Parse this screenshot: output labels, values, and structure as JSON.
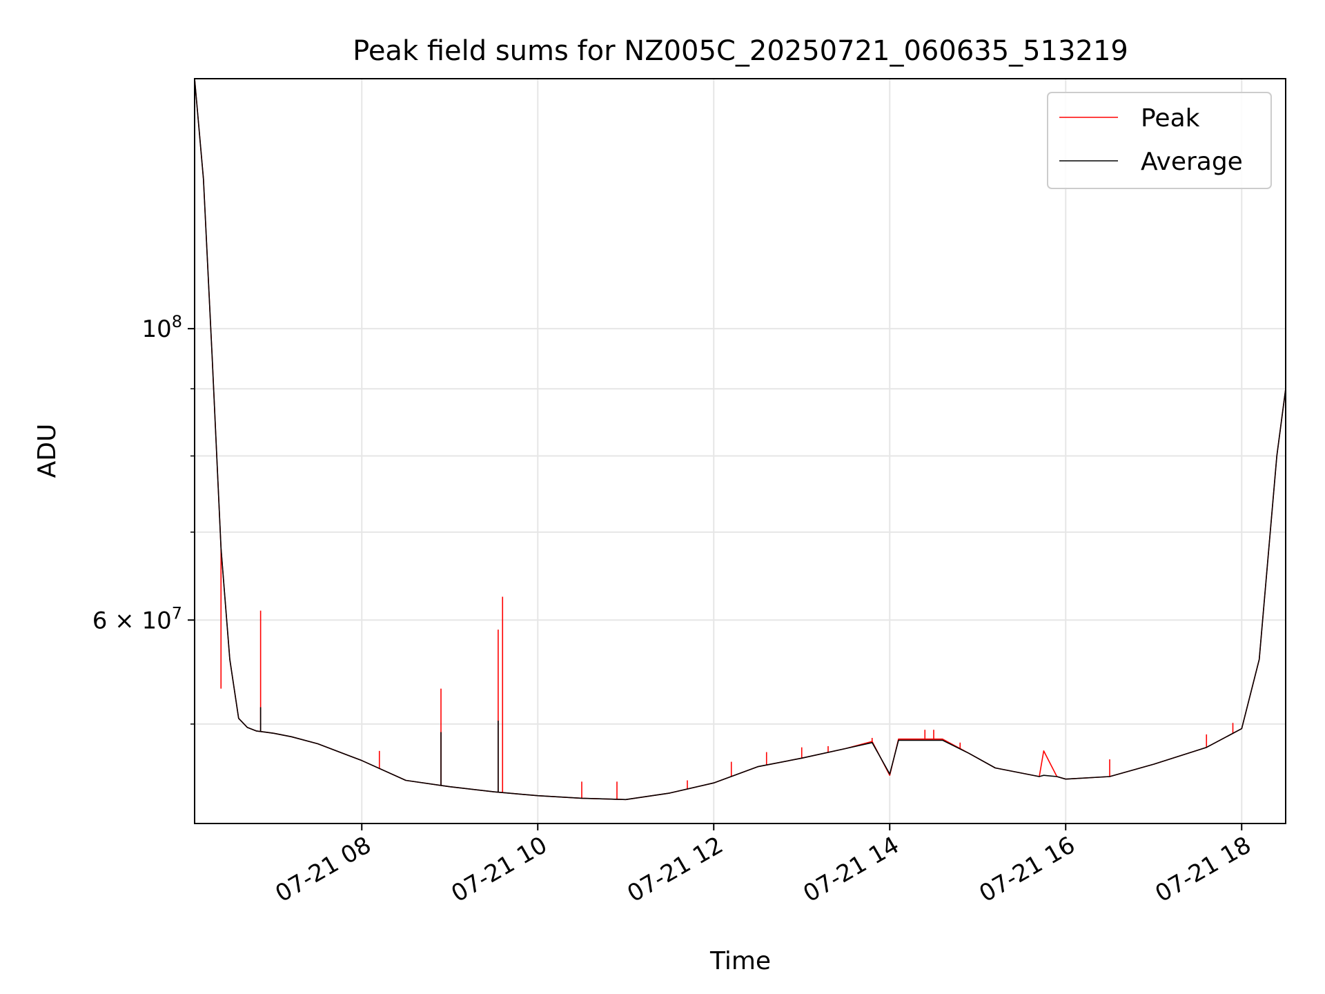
{
  "chart_data": {
    "type": "line",
    "title": "Peak field sums for NZ005C_20250721_060635_513219",
    "xlabel": "Time",
    "ylabel": "ADU",
    "x_unit": "time of day (hours), 2025-07-21",
    "ylim": [
      42000000,
      155000000
    ],
    "xlim": [
      6.1,
      18.5
    ],
    "yscale": "log",
    "grid": true,
    "legend_position": "upper right",
    "xticks": [
      {
        "value": 8,
        "label": "07-21 08"
      },
      {
        "value": 10,
        "label": "07-21 10"
      },
      {
        "value": 12,
        "label": "07-21 12"
      },
      {
        "value": 14,
        "label": "07-21 14"
      },
      {
        "value": 16,
        "label": "07-21 16"
      },
      {
        "value": 18,
        "label": "07-21 18"
      }
    ],
    "yticks": [
      {
        "value": 100000000,
        "label_base": "10",
        "label_exp": "8"
      },
      {
        "value": 60000000,
        "label_base": "6 × 10",
        "label_exp": "7"
      }
    ],
    "yminor_ticks": [
      50000000,
      70000000,
      80000000,
      90000000
    ],
    "series": [
      {
        "name": "Peak",
        "color": "#ff0000",
        "x": [
          6.1,
          6.2,
          6.3,
          6.4,
          6.5,
          6.6,
          6.7,
          6.8,
          6.9,
          7.0,
          7.2,
          7.5,
          8.0,
          8.5,
          9.0,
          9.5,
          10.0,
          10.5,
          11.0,
          11.5,
          12.0,
          12.5,
          13.0,
          13.5,
          13.8,
          14.0,
          14.1,
          14.3,
          14.6,
          14.9,
          15.2,
          15.7,
          15.75,
          15.9,
          16.0,
          16.5,
          17.0,
          17.6,
          18.0,
          18.2,
          18.4,
          18.5
        ],
        "y": [
          155000000,
          130000000,
          95000000,
          68000000,
          56000000,
          50500000,
          49700000,
          49400000,
          49300000,
          49200000,
          48900000,
          48300000,
          46900000,
          45300000,
          44800000,
          44400000,
          44100000,
          43900000,
          43800000,
          44300000,
          45100000,
          46400000,
          47100000,
          47900000,
          48500000,
          45700000,
          48700000,
          48700000,
          48700000,
          47500000,
          46300000,
          45600000,
          47700000,
          45600000,
          45400000,
          45600000,
          46600000,
          48000000,
          49600000,
          56000000,
          80000000,
          90000000
        ],
        "spikes": [
          {
            "x": 6.4,
            "y": 53200000
          },
          {
            "x": 6.85,
            "y": 61000000
          },
          {
            "x": 8.2,
            "y": 47700000
          },
          {
            "x": 8.9,
            "y": 53200000
          },
          {
            "x": 9.55,
            "y": 59000000
          },
          {
            "x": 9.6,
            "y": 62500000
          },
          {
            "x": 10.5,
            "y": 45200000
          },
          {
            "x": 10.9,
            "y": 45200000
          },
          {
            "x": 11.7,
            "y": 45300000
          },
          {
            "x": 12.2,
            "y": 46800000
          },
          {
            "x": 12.6,
            "y": 47600000
          },
          {
            "x": 13.0,
            "y": 48000000
          },
          {
            "x": 13.3,
            "y": 48100000
          },
          {
            "x": 13.8,
            "y": 48800000
          },
          {
            "x": 14.4,
            "y": 49500000
          },
          {
            "x": 14.5,
            "y": 49500000
          },
          {
            "x": 14.8,
            "y": 48400000
          },
          {
            "x": 16.5,
            "y": 47000000
          },
          {
            "x": 17.6,
            "y": 49100000
          },
          {
            "x": 17.9,
            "y": 50100000
          }
        ]
      },
      {
        "name": "Average",
        "color": "#000000",
        "x": [
          6.1,
          6.2,
          6.3,
          6.4,
          6.5,
          6.6,
          6.7,
          6.8,
          6.9,
          7.0,
          7.2,
          7.5,
          8.0,
          8.5,
          9.0,
          9.5,
          10.0,
          10.5,
          11.0,
          11.5,
          12.0,
          12.5,
          13.0,
          13.5,
          13.8,
          14.0,
          14.1,
          14.3,
          14.6,
          14.9,
          15.2,
          15.7,
          15.75,
          15.9,
          16.0,
          16.5,
          17.0,
          17.6,
          18.0,
          18.2,
          18.4,
          18.5
        ],
        "y": [
          155000000,
          130000000,
          95000000,
          68000000,
          56000000,
          50500000,
          49700000,
          49400000,
          49300000,
          49200000,
          48900000,
          48300000,
          46900000,
          45300000,
          44800000,
          44400000,
          44100000,
          43900000,
          43800000,
          44300000,
          45100000,
          46400000,
          47100000,
          47900000,
          48400000,
          45800000,
          48600000,
          48600000,
          48600000,
          47500000,
          46300000,
          45600000,
          45700000,
          45600000,
          45400000,
          45600000,
          46600000,
          48000000,
          49600000,
          56000000,
          80000000,
          90000000
        ],
        "spikes": [
          {
            "x": 6.85,
            "y": 51500000
          },
          {
            "x": 8.9,
            "y": 49300000
          },
          {
            "x": 9.55,
            "y": 50300000
          }
        ]
      }
    ]
  }
}
